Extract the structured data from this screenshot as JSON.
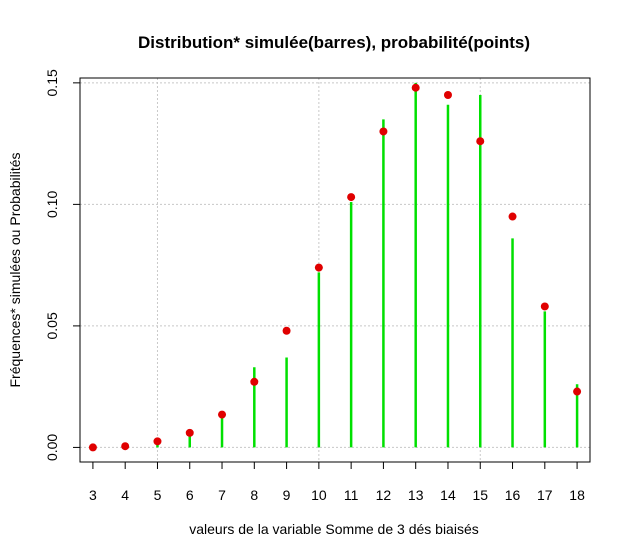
{
  "chart_data": {
    "type": "scatter",
    "title": "Distribution* simulée(barres), probabilité(points)",
    "xlabel": "valeurs de la variable Somme de 3 dés biaisés",
    "ylabel": "Fréquences* simulées ou Probabilités",
    "x": [
      3,
      4,
      5,
      6,
      7,
      8,
      9,
      10,
      11,
      12,
      13,
      14,
      15,
      16,
      17,
      18
    ],
    "x_tick_labels": [
      "3",
      "4",
      "5",
      "6",
      "7",
      "8",
      "9",
      "10",
      "11",
      "12",
      "13",
      "14",
      "15",
      "16",
      "17",
      "18"
    ],
    "y_ticks": [
      0.0,
      0.05,
      0.1,
      0.15
    ],
    "y_tick_labels": [
      "0.00",
      "0.05",
      "0.10",
      "0.15"
    ],
    "xlim": [
      2.6,
      18.4
    ],
    "ylim": [
      -0.006,
      0.152
    ],
    "grid": true,
    "series": [
      {
        "kind": "bars",
        "color": "#00e000",
        "values": [
          0.0,
          0.0,
          0.002,
          0.006,
          0.012,
          0.033,
          0.037,
          0.072,
          0.101,
          0.135,
          0.15,
          0.141,
          0.145,
          0.086,
          0.056,
          0.026
        ]
      },
      {
        "kind": "points",
        "color": "#e00000",
        "values": [
          0.0,
          0.0005,
          0.0025,
          0.006,
          0.0135,
          0.027,
          0.048,
          0.074,
          0.103,
          0.13,
          0.148,
          0.145,
          0.126,
          0.095,
          0.058,
          0.023
        ]
      }
    ]
  }
}
